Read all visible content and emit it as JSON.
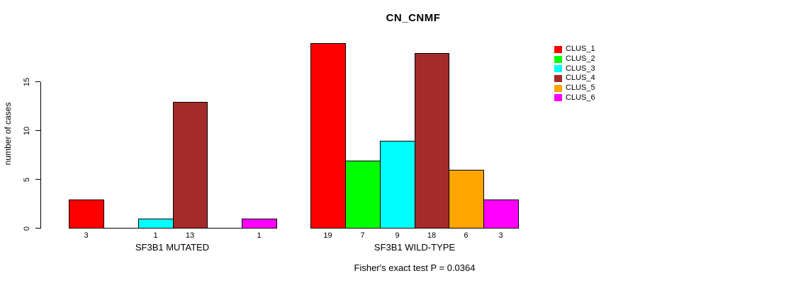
{
  "chart_data": {
    "type": "bar",
    "title": "CN_CNMF",
    "ylabel": "number of cases",
    "yticks": [
      0,
      5,
      10,
      15
    ],
    "ylim": [
      0,
      19.5
    ],
    "grid": false,
    "legend_position": "right",
    "bar_border_color": "#000000",
    "clusters": [
      {
        "name": "CLUS_1",
        "color": "#FF0000"
      },
      {
        "name": "CLUS_2",
        "color": "#00FF00"
      },
      {
        "name": "CLUS_3",
        "color": "#00FFFF"
      },
      {
        "name": "CLUS_4",
        "color": "#A52A2A"
      },
      {
        "name": "CLUS_5",
        "color": "#FFA500"
      },
      {
        "name": "CLUS_6",
        "color": "#FF00FF"
      }
    ],
    "groups": [
      {
        "label": "SF3B1 MUTATED",
        "values": [
          3,
          0,
          1,
          13,
          0,
          1
        ]
      },
      {
        "label": "SF3B1 WILD-TYPE",
        "values": [
          19,
          7,
          9,
          18,
          6,
          3
        ]
      }
    ],
    "zero_height_bars_drawn_flat": true,
    "value_labels_hidden_for_zero": true,
    "caption": "Fisher's exact test P = 0.0364"
  }
}
